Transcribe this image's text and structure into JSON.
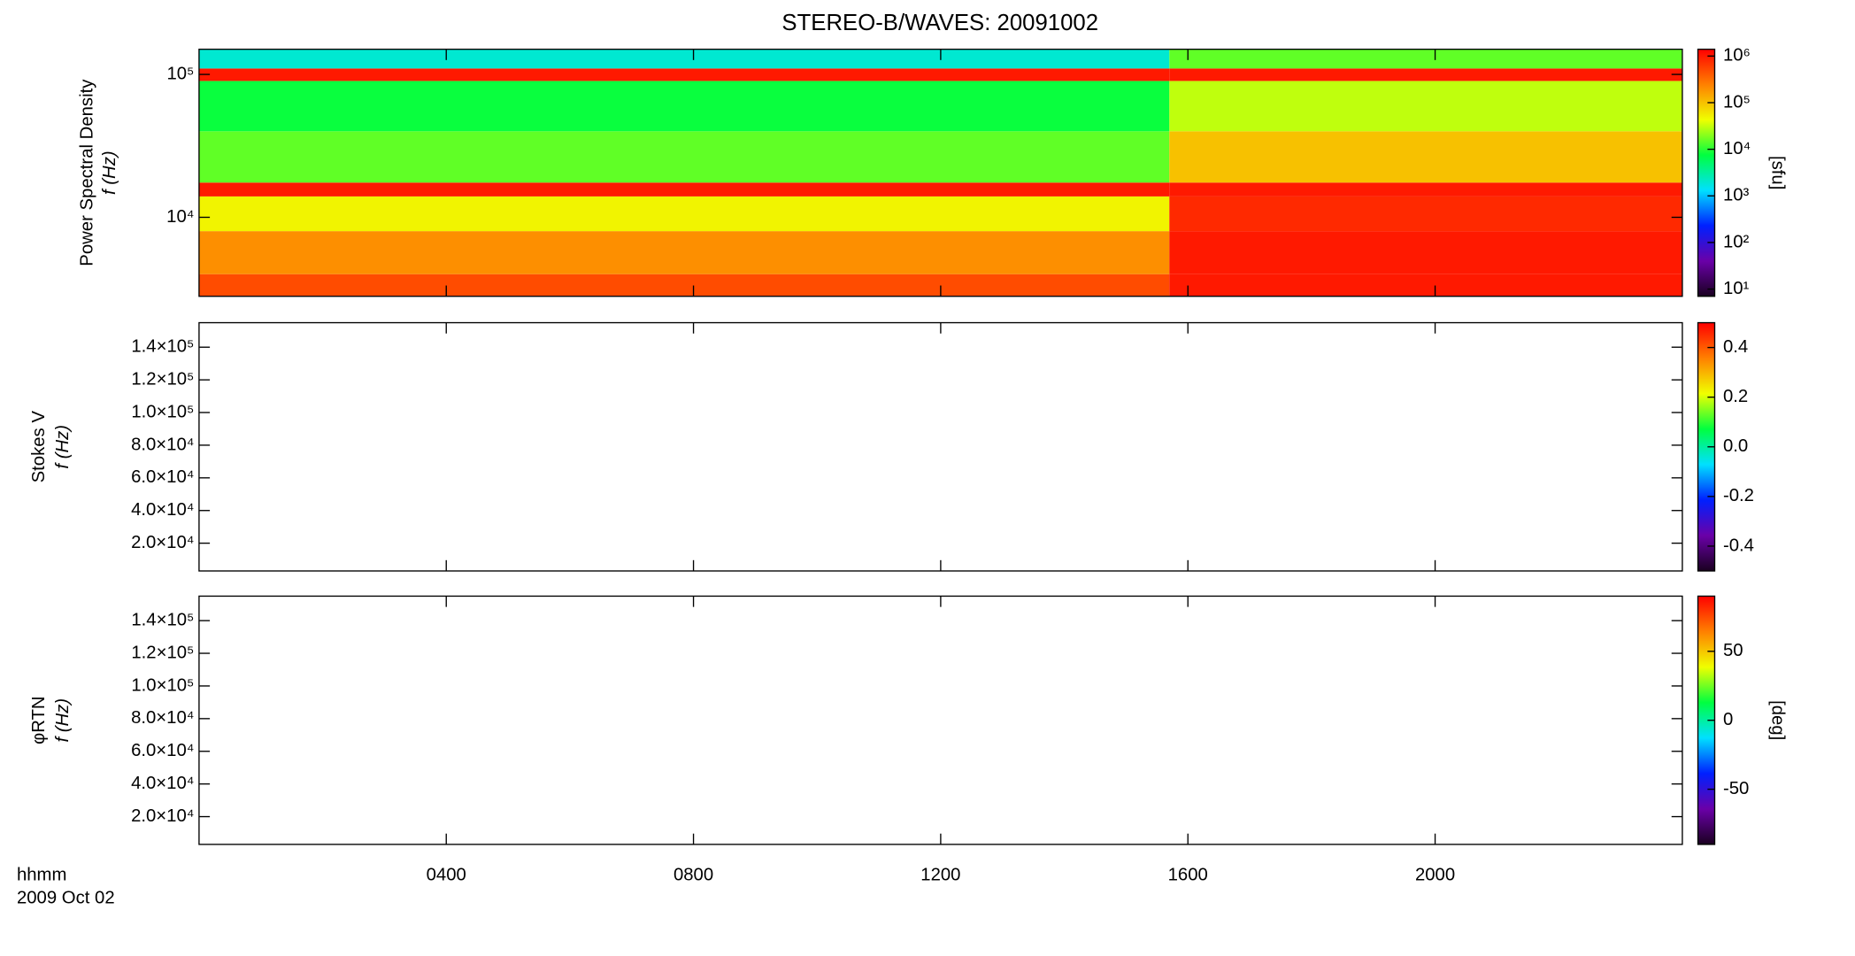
{
  "chart_data": [
    {
      "type": "heatmap",
      "title": "STEREO-B/WAVES: 20091002",
      "ylabel": [
        "Power Spectral Density",
        "f (Hz)"
      ],
      "xlim": [
        0,
        24
      ],
      "ylim": [
        2800,
        150000
      ],
      "ylog": true,
      "yticks": [
        {
          "value": 10000,
          "label": "10⁴"
        },
        {
          "value": 100000,
          "label": "10⁵"
        }
      ],
      "x_edges": [
        0,
        15.7,
        24
      ],
      "y_edges": [
        2800,
        4000,
        8000,
        14000,
        17500,
        40000,
        90000,
        110000,
        150000
      ],
      "values": [
        [
          500000,
          1000000
        ],
        [
          200000,
          1000000
        ],
        [
          50000,
          800000
        ],
        [
          1000000,
          1000000
        ],
        [
          15000,
          100000
        ],
        [
          8000,
          30000
        ],
        [
          1000000,
          1000000
        ],
        [
          2000,
          15000
        ]
      ],
      "colormap": [
        "#1a0020",
        "#6a00a8",
        "#0020ff",
        "#00e0ff",
        "#00ff40",
        "#f0ff00",
        "#ff8000",
        "#ff0000"
      ],
      "colorbar": {
        "log": true,
        "lim": [
          7,
          1400000
        ],
        "label": "[sfu]",
        "ticks": [
          {
            "value": 10,
            "label": "10¹"
          },
          {
            "value": 100,
            "label": "10²"
          },
          {
            "value": 1000,
            "label": "10³"
          },
          {
            "value": 10000,
            "label": "10⁴"
          },
          {
            "value": 100000,
            "label": "10⁵"
          },
          {
            "value": 1000000,
            "label": "10⁶"
          }
        ]
      }
    },
    {
      "type": "heatmap",
      "ylabel": [
        "Stokes V",
        "f (Hz)"
      ],
      "xlim": [
        0,
        24
      ],
      "ylim": [
        3000,
        155000
      ],
      "yticks": [
        {
          "value": 20000,
          "label": "2.0×10⁴"
        },
        {
          "value": 40000,
          "label": "4.0×10⁴"
        },
        {
          "value": 60000,
          "label": "6.0×10⁴"
        },
        {
          "value": 80000,
          "label": "8.0×10⁴"
        },
        {
          "value": 100000,
          "label": "1.0×10⁵"
        },
        {
          "value": 120000,
          "label": "1.2×10⁵"
        },
        {
          "value": 140000,
          "label": "1.4×10⁵"
        }
      ],
      "colorbar": {
        "lim": [
          -0.5,
          0.5
        ],
        "ticks": [
          -0.4,
          -0.2,
          {
            "value": 0,
            "label": "0.0"
          },
          0.2,
          0.4
        ]
      }
    },
    {
      "type": "heatmap",
      "ylabel": [
        "φRTN",
        "f (Hz)"
      ],
      "xlim": [
        0,
        24
      ],
      "ylim": [
        3000,
        155000
      ],
      "yticks": [
        {
          "value": 20000,
          "label": "2.0×10⁴"
        },
        {
          "value": 40000,
          "label": "4.0×10⁴"
        },
        {
          "value": 60000,
          "label": "6.0×10⁴"
        },
        {
          "value": 80000,
          "label": "8.0×10⁴"
        },
        {
          "value": 100000,
          "label": "1.0×10⁵"
        },
        {
          "value": 120000,
          "label": "1.2×10⁵"
        },
        {
          "value": 140000,
          "label": "1.4×10⁵"
        }
      ],
      "xticks": [
        {
          "value": 4,
          "label": "0400"
        },
        {
          "value": 8,
          "label": "0800"
        },
        {
          "value": 12,
          "label": "1200"
        },
        {
          "value": 16,
          "label": "1600"
        },
        {
          "value": 20,
          "label": "2000"
        }
      ],
      "x_label": "hhmm",
      "date": "2009 Oct 02",
      "colorbar": {
        "lim": [
          -90,
          90
        ],
        "label": "[deg]",
        "ticks": [
          -50,
          0,
          50
        ]
      }
    }
  ]
}
